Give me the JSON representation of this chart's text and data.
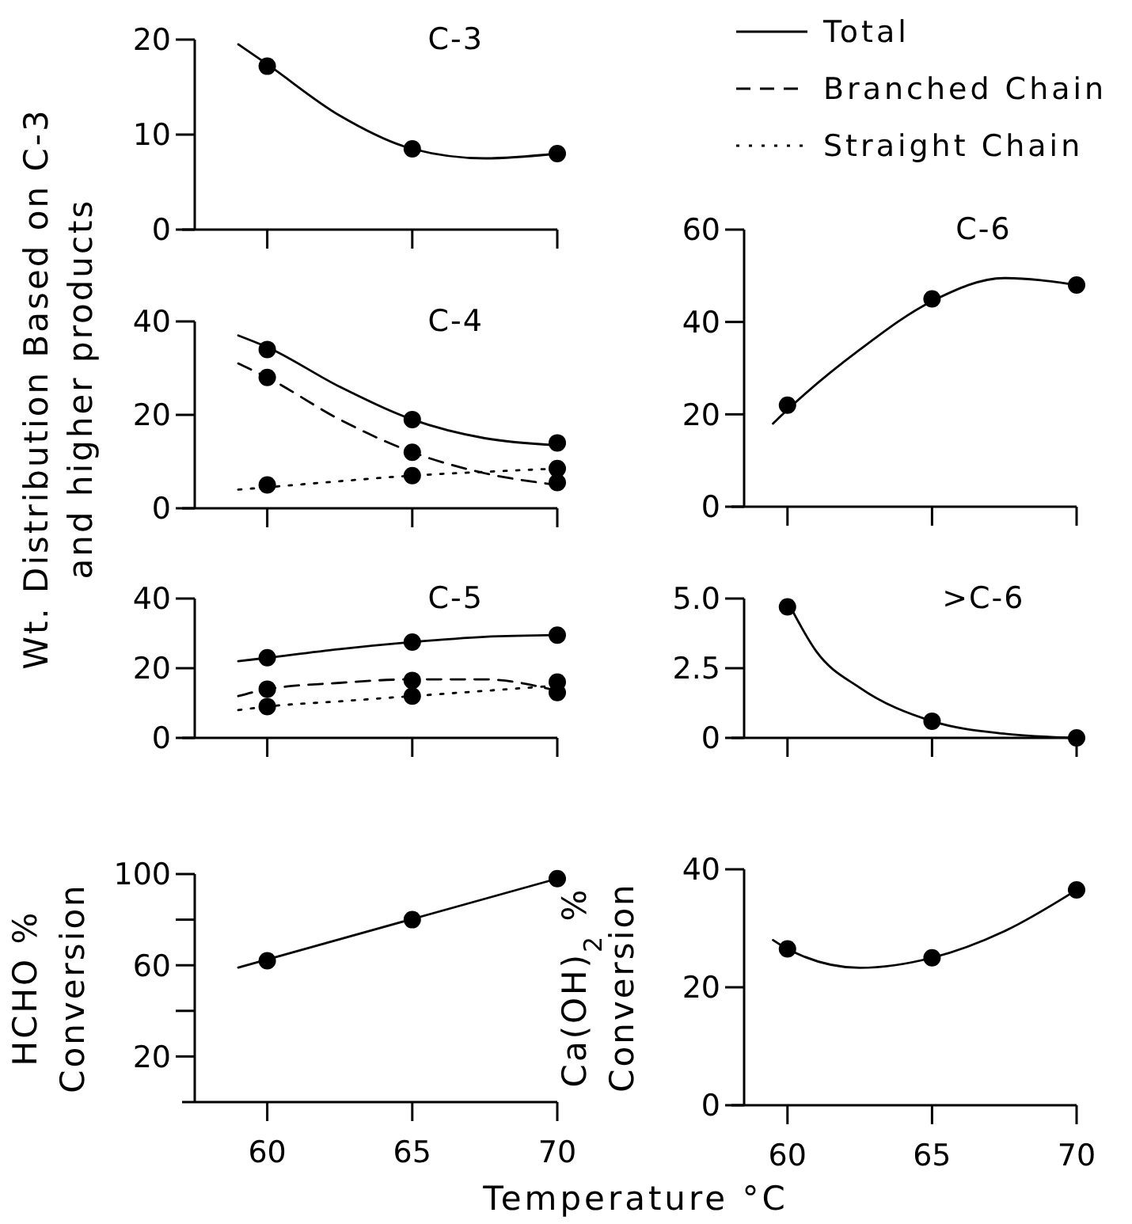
{
  "chart_data": [
    {
      "type": "line",
      "title": "C-3",
      "xlim": [
        57.5,
        70
      ],
      "xticks": [
        60,
        65,
        70
      ],
      "ylim": [
        0,
        20
      ],
      "yticks": [
        0,
        10,
        20
      ],
      "tick_labels": "y",
      "marker": "circle",
      "series": [
        {
          "type": "line",
          "color": "#000000",
          "line_style": "solid",
          "marker": "none",
          "x": [
            59,
            60,
            62.5,
            65,
            67.5,
            70
          ],
          "values": [
            19.5,
            17.4,
            12,
            8.5,
            7.5,
            8
          ]
        },
        {
          "type": "scatter",
          "color": "#000000",
          "x": [
            60,
            65,
            70
          ],
          "values": [
            17.2,
            8.5,
            8
          ]
        }
      ]
    },
    {
      "type": "line",
      "title": "C-4",
      "ylabel": "Wt. Distribution Based on C-3\nand higher products",
      "legend": "top right",
      "xlim": [
        57.5,
        70
      ],
      "xticks": [
        60,
        65,
        70
      ],
      "ylim": [
        0,
        40
      ],
      "yticks": [
        0,
        20,
        40
      ],
      "tick_labels": "y",
      "marker": "circle",
      "series": [
        {
          "type": "line",
          "name": "Total",
          "color": "#000000",
          "line_style": "solid",
          "marker": "none",
          "x": [
            59,
            60,
            62.5,
            65,
            67.5,
            70
          ],
          "values": [
            37,
            34.5,
            26,
            19,
            15,
            13.5
          ]
        },
        {
          "type": "line",
          "name": "Branched Chain",
          "color": "#000000",
          "line_style": "dashed",
          "marker": "none",
          "x": [
            59,
            60,
            62.5,
            65,
            67.5,
            70
          ],
          "values": [
            31,
            28,
            19,
            12,
            7.5,
            5
          ]
        },
        {
          "type": "line",
          "name": "Straight Chain",
          "color": "#000000",
          "line_style": "dotted",
          "marker": "none",
          "x": [
            59,
            60,
            62.5,
            65,
            67.5,
            70
          ],
          "values": [
            4,
            4.5,
            5.8,
            7,
            7.8,
            8.5
          ]
        },
        {
          "type": "scatter",
          "color": "#000000",
          "x": [
            60,
            65,
            70,
            60,
            65,
            70,
            60,
            65,
            70
          ],
          "values": [
            34,
            19,
            14,
            28,
            12,
            5.5,
            5,
            7,
            8.5
          ]
        }
      ]
    },
    {
      "type": "line",
      "title": "C-5",
      "xlim": [
        57.5,
        70
      ],
      "xticks": [
        60,
        65,
        70
      ],
      "ylim": [
        0,
        40
      ],
      "yticks": [
        0,
        20,
        40
      ],
      "tick_labels": "y",
      "marker": "circle",
      "series": [
        {
          "type": "line",
          "color": "#000000",
          "line_style": "solid",
          "marker": "none",
          "x": [
            59,
            60,
            62.5,
            65,
            67.5,
            70
          ],
          "values": [
            22,
            23,
            25.5,
            27.5,
            29,
            29.5
          ]
        },
        {
          "type": "line",
          "color": "#000000",
          "line_style": "dashed",
          "marker": "none",
          "x": [
            59,
            60,
            62.5,
            65,
            67.5,
            70
          ],
          "values": [
            12,
            14,
            15.8,
            16.8,
            16.8,
            13.5
          ]
        },
        {
          "type": "line",
          "color": "#000000",
          "line_style": "dotted",
          "marker": "none",
          "x": [
            59,
            60,
            62.5,
            65,
            67.5,
            70
          ],
          "values": [
            8,
            9,
            10.5,
            12,
            13.5,
            15
          ]
        },
        {
          "type": "scatter",
          "color": "#000000",
          "x": [
            60,
            65,
            70,
            60,
            65,
            70,
            60,
            65,
            70
          ],
          "values": [
            23,
            27.5,
            29.5,
            14,
            16.5,
            16,
            9,
            12,
            13
          ]
        }
      ]
    },
    {
      "type": "line",
      "ylabel": "HCHO %\nConversion",
      "xlabel": "Temperature °C",
      "xlim": [
        57.5,
        70
      ],
      "xticks": [
        60,
        65,
        70
      ],
      "ylim": [
        0,
        100
      ],
      "yticks": [
        20,
        {
          "value": 40,
          "label": null
        },
        60,
        {
          "value": 80,
          "label": null
        },
        100
      ],
      "marker": "circle",
      "series": [
        {
          "type": "line",
          "color": "#000000",
          "line_style": "solid",
          "marker": "none",
          "x": [
            59,
            70
          ],
          "values": [
            59,
            98
          ]
        },
        {
          "type": "scatter",
          "color": "#000000",
          "x": [
            60,
            65,
            70
          ],
          "values": [
            62,
            80,
            98
          ]
        }
      ]
    },
    {
      "type": "line",
      "title": "C-6",
      "xlim": [
        58.5,
        70
      ],
      "xticks": [
        60,
        65,
        70
      ],
      "ylim": [
        0,
        60
      ],
      "yticks": [
        0,
        20,
        40,
        60
      ],
      "tick_labels": "y",
      "marker": "circle",
      "series": [
        {
          "type": "line",
          "color": "#000000",
          "line_style": "solid",
          "marker": "none",
          "x": [
            59.5,
            60,
            62.5,
            65,
            67.5,
            70
          ],
          "values": [
            18,
            21,
            34,
            44.5,
            49.5,
            48
          ]
        },
        {
          "type": "scatter",
          "color": "#000000",
          "x": [
            60,
            65,
            70
          ],
          "values": [
            22,
            45,
            48
          ]
        }
      ]
    },
    {
      "type": "line",
      "title": ">C-6",
      "xlim": [
        58.5,
        70
      ],
      "xticks": [
        60,
        65,
        70
      ],
      "ylim": [
        0,
        5
      ],
      "yticks": [
        0,
        2.5,
        {
          "value": 5,
          "label": "5.0"
        }
      ],
      "tick_labels": "y",
      "marker": "circle",
      "series": [
        {
          "type": "line",
          "color": "#000000",
          "line_style": "solid",
          "marker": "none",
          "x": [
            60,
            61,
            62.5,
            65,
            67.5,
            70
          ],
          "values": [
            4.9,
            3.1,
            1.8,
            0.6,
            0.15,
            0
          ]
        },
        {
          "type": "scatter",
          "color": "#000000",
          "x": [
            60,
            65,
            70
          ],
          "values": [
            4.7,
            0.6,
            0
          ]
        }
      ]
    },
    {
      "type": "line",
      "ylabel": "Ca(OH)$_{2}$ %\nConversion",
      "xlim": [
        58.5,
        70
      ],
      "xticks": [
        60,
        65,
        70
      ],
      "ylim": [
        0,
        40
      ],
      "yticks": [
        0,
        20,
        40
      ],
      "marker": "circle",
      "series": [
        {
          "type": "line",
          "color": "#000000",
          "line_style": "solid",
          "marker": "none",
          "x": [
            59.5,
            60,
            62.5,
            65,
            67.5,
            70
          ],
          "values": [
            28,
            26.5,
            23.3,
            25,
            29.5,
            36.5
          ]
        },
        {
          "type": "scatter",
          "color": "#000000",
          "x": [
            60,
            65,
            70
          ],
          "values": [
            26.5,
            25,
            36.5
          ]
        }
      ]
    }
  ]
}
